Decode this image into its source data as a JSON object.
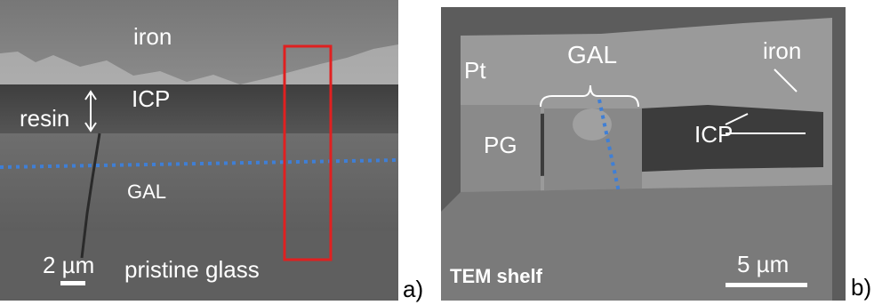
{
  "figure": {
    "panels": [
      {
        "letter": "a)",
        "labels": {
          "iron": "iron",
          "icp": "ICP",
          "resin": "resin",
          "gal": "GAL",
          "glass": "pristine glass"
        },
        "scale": "2 µm",
        "colors": {
          "box": "#e02020",
          "dotted_line": "#3f7fd6"
        }
      },
      {
        "letter": "b)",
        "labels": {
          "pt": "Pt",
          "gal": "GAL",
          "iron": "iron",
          "pg": "PG",
          "icp": "ICP",
          "shelf": "TEM shelf"
        },
        "scale": "5 µm",
        "colors": {
          "dotted_line": "#3f7fd6"
        }
      }
    ]
  }
}
